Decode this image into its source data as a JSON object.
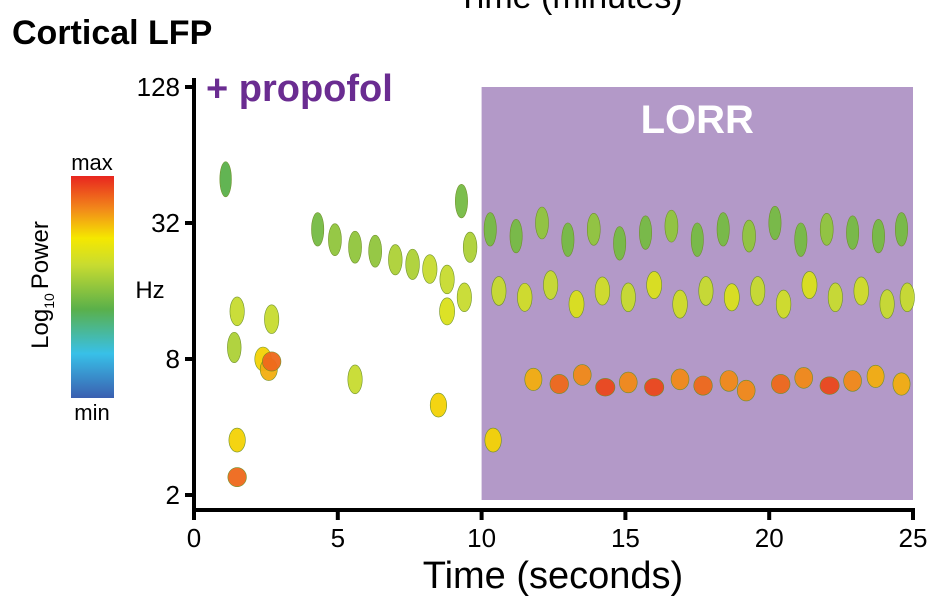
{
  "chart_data": {
    "type": "spectrogram",
    "title": "Cortical LFP",
    "top_label": "Time (minutes)",
    "xlabel": "Time (seconds)",
    "ylabel": "Hz",
    "annotation": {
      "text": "+ propofol",
      "color": "#6a2c91"
    },
    "shaded": {
      "label": "LORR",
      "from": 10,
      "to": 25,
      "color": "#b399c8"
    },
    "xlim": [
      0,
      25
    ],
    "xticks": [
      0,
      5,
      10,
      15,
      20,
      25
    ],
    "ylim": [
      2,
      128
    ],
    "yticks": [
      2,
      8,
      32,
      128
    ],
    "yscale": "log2",
    "colorbar": {
      "base": "Log",
      "subscript": "10",
      "text": "Power",
      "lim": [
        0,
        1
      ],
      "ticks": [
        {
          "value": 1,
          "label": "max"
        },
        {
          "value": 0,
          "label": "min"
        }
      ]
    },
    "x": [
      1.1,
      1.4,
      1.5,
      1.5,
      1.5,
      2.4,
      2.6,
      2.7,
      2.7,
      5.6,
      8.5,
      4.3,
      4.9,
      5.6,
      6.3,
      7.0,
      7.6,
      8.2,
      8.8,
      9.3,
      9.6,
      8.8,
      9.4,
      10.3,
      11.2,
      12.1,
      13.0,
      13.9,
      14.8,
      15.7,
      16.6,
      17.5,
      18.4,
      19.3,
      20.2,
      21.1,
      22.0,
      22.9,
      23.8,
      24.6,
      10.6,
      11.5,
      12.4,
      13.3,
      14.2,
      15.1,
      16.0,
      16.9,
      17.8,
      18.7,
      19.6,
      20.5,
      21.4,
      22.3,
      23.2,
      24.1,
      24.8,
      10.4,
      11.8,
      12.7,
      13.5,
      14.3,
      15.1,
      16.0,
      16.9,
      17.7,
      18.6,
      19.2,
      20.4,
      21.2,
      22.1,
      22.9,
      23.7,
      24.6
    ],
    "y": [
      50,
      9,
      2.4,
      3.5,
      13,
      8,
      7.2,
      7.8,
      12,
      6.5,
      5,
      30,
      27,
      25,
      24,
      22,
      21,
      20,
      13,
      40,
      25,
      18,
      15,
      30,
      28,
      32,
      27,
      30,
      26,
      29,
      31,
      27,
      30,
      28,
      32,
      27,
      30,
      29,
      28,
      30,
      16,
      15,
      17,
      14,
      16,
      15,
      17,
      14,
      16,
      15,
      16,
      14,
      17,
      15,
      16,
      14,
      15,
      3.5,
      6.5,
      6.2,
      6.8,
      6,
      6.3,
      6,
      6.5,
      6.1,
      6.4,
      5.8,
      6.2,
      6.6,
      6.1,
      6.4,
      6.7,
      6.2
    ],
    "power": [
      0.4,
      0.55,
      0.9,
      0.75,
      0.6,
      0.75,
      0.8,
      0.9,
      0.6,
      0.6,
      0.75,
      0.45,
      0.5,
      0.5,
      0.5,
      0.55,
      0.55,
      0.6,
      0.65,
      0.45,
      0.55,
      0.6,
      0.6,
      0.45,
      0.45,
      0.5,
      0.45,
      0.5,
      0.45,
      0.45,
      0.5,
      0.45,
      0.45,
      0.5,
      0.45,
      0.45,
      0.5,
      0.45,
      0.45,
      0.45,
      0.6,
      0.62,
      0.6,
      0.65,
      0.62,
      0.6,
      0.65,
      0.62,
      0.6,
      0.65,
      0.6,
      0.62,
      0.65,
      0.6,
      0.62,
      0.6,
      0.6,
      0.75,
      0.8,
      0.9,
      0.85,
      0.95,
      0.85,
      0.95,
      0.85,
      0.9,
      0.85,
      0.85,
      0.9,
      0.85,
      0.95,
      0.85,
      0.8,
      0.8
    ]
  }
}
